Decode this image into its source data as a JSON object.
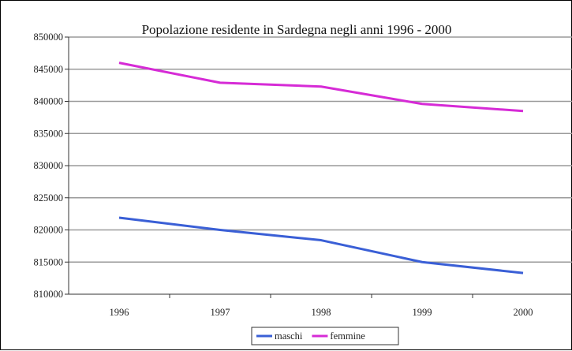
{
  "chart_data": {
    "type": "line",
    "title": "Popolazione residente in Sardegna negli anni 1996 -  2000",
    "xlabel": "",
    "ylabel": "",
    "x": [
      "1996",
      "1997",
      "1998",
      "1999",
      "2000"
    ],
    "ylim": [
      810000,
      850000
    ],
    "ytick_values": [
      810000,
      815000,
      820000,
      825000,
      830000,
      835000,
      840000,
      845000,
      850000
    ],
    "ytick_labels": [
      "810000",
      "815000",
      "820000",
      "825000",
      "830000",
      "835000",
      "840000",
      "845000",
      "850000"
    ],
    "grid": true,
    "legend_position": "bottom",
    "series": [
      {
        "name": "maschi",
        "color": "#3a5fd6",
        "values": [
          821900,
          820000,
          818400,
          815000,
          813300
        ]
      },
      {
        "name": "femmine",
        "color": "#d62bd6",
        "values": [
          846000,
          842900,
          842300,
          839600,
          838500
        ]
      }
    ]
  }
}
